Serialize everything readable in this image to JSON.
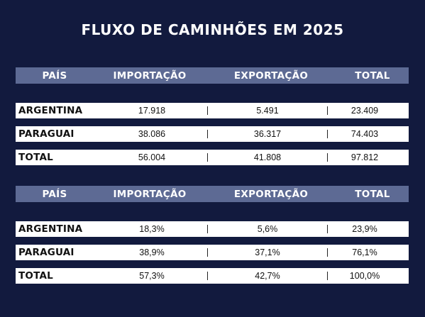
{
  "title": "FLUXO DE CAMINHÕES EM 2025",
  "headers": [
    "PAÍS",
    "IMPORTAÇÃO",
    "EXPORTAÇÃO",
    "TOTAL"
  ],
  "tables": [
    {
      "rows": [
        {
          "country": "ARGENTINA",
          "import": "17.918",
          "export": "5.491",
          "total": "23.409"
        },
        {
          "country": "PARAGUAI",
          "import": "38.086",
          "export": "36.317",
          "total": "74.403"
        },
        {
          "country": "TOTAL",
          "import": "56.004",
          "export": "41.808",
          "total": "97.812"
        }
      ]
    },
    {
      "rows": [
        {
          "country": "ARGENTINA",
          "import": "18,3%",
          "export": "5,6%",
          "total": "23,9%"
        },
        {
          "country": "PARAGUAI",
          "import": "38,9%",
          "export": "37,1%",
          "total": "76,1%"
        },
        {
          "country": "TOTAL",
          "import": "57,3%",
          "export": "42,7%",
          "total": "100,0%"
        }
      ]
    }
  ]
}
